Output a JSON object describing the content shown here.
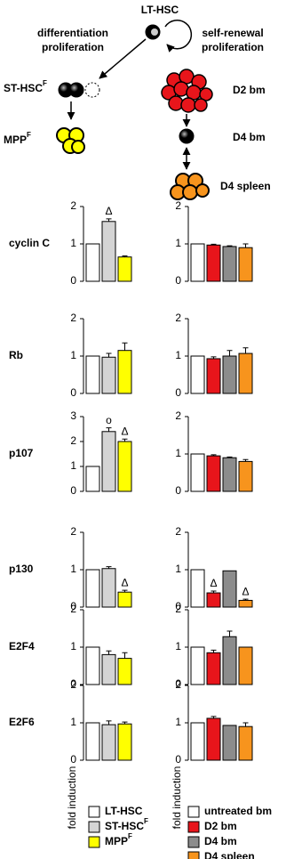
{
  "diagram": {
    "root": "LT-HSC",
    "left_arrow": [
      "differentiation",
      "proliferation"
    ],
    "right_arrow": [
      "self-renewal",
      "proliferation"
    ],
    "st": {
      "name": "ST-HSC",
      "sup": "F"
    },
    "mpp": {
      "name": "MPP",
      "sup": "F"
    },
    "d2": "D2 bm",
    "d4": "D4 bm",
    "spleen": "D4 spleen"
  },
  "chart_data": [
    {
      "type": "bar",
      "label": "cyclin C",
      "ylim": [
        0,
        2
      ],
      "yticks": [
        0,
        1,
        2
      ],
      "values": [
        1,
        1.6,
        0.65
      ],
      "errors": [
        null,
        0.07,
        0.03
      ],
      "annotations": [
        null,
        "Δ",
        null
      ],
      "colors": [
        "#ffffff",
        "#d4d4d4",
        "#ffff00"
      ]
    },
    {
      "type": "bar",
      "ylim": [
        0,
        2
      ],
      "yticks": [
        0,
        1,
        2
      ],
      "values": [
        1,
        0.97,
        0.93,
        0.9
      ],
      "errors": [
        null,
        0.02,
        0.02,
        0.1
      ],
      "annotations": [
        null,
        null,
        null,
        null
      ],
      "colors": [
        "#ffffff",
        "#e8151b",
        "#8c8c8c",
        "#f7941d"
      ]
    },
    {
      "type": "bar",
      "label": "Rb",
      "ylim": [
        0,
        2
      ],
      "yticks": [
        0,
        1,
        2
      ],
      "values": [
        1,
        0.97,
        1.15
      ],
      "errors": [
        null,
        0.1,
        0.2
      ],
      "annotations": [
        null,
        null,
        null
      ],
      "colors": [
        "#ffffff",
        "#d4d4d4",
        "#ffff00"
      ]
    },
    {
      "type": "bar",
      "ylim": [
        0,
        2
      ],
      "yticks": [
        0,
        1,
        2
      ],
      "values": [
        1,
        0.93,
        1.0,
        1.07
      ],
      "errors": [
        null,
        0.05,
        0.15,
        0.15
      ],
      "annotations": [
        null,
        null,
        null,
        null
      ],
      "colors": [
        "#ffffff",
        "#e8151b",
        "#8c8c8c",
        "#f7941d"
      ]
    },
    {
      "type": "bar",
      "label": "p107",
      "ylim": [
        0,
        3
      ],
      "yticks": [
        0,
        1,
        2,
        3
      ],
      "values": [
        1,
        2.4,
        2.0
      ],
      "errors": [
        null,
        0.15,
        0.1
      ],
      "annotations": [
        null,
        "o",
        "Δ"
      ],
      "colors": [
        "#ffffff",
        "#d4d4d4",
        "#ffff00"
      ]
    },
    {
      "type": "bar",
      "ylim": [
        0,
        2
      ],
      "yticks": [
        0,
        1,
        2
      ],
      "values": [
        1,
        0.95,
        0.9,
        0.8
      ],
      "errors": [
        null,
        0.03,
        0.02,
        0.05
      ],
      "annotations": [
        null,
        null,
        null,
        null
      ],
      "colors": [
        "#ffffff",
        "#e8151b",
        "#8c8c8c",
        "#f7941d"
      ]
    },
    {
      "type": "bar",
      "label": "p130",
      "ylim": [
        0,
        2
      ],
      "yticks": [
        0,
        1,
        2
      ],
      "values": [
        1,
        1.03,
        0.4
      ],
      "errors": [
        null,
        0.05,
        0.05
      ],
      "annotations": [
        null,
        null,
        "Δ"
      ],
      "colors": [
        "#ffffff",
        "#d4d4d4",
        "#ffff00"
      ]
    },
    {
      "type": "bar",
      "ylim": [
        0,
        2
      ],
      "yticks": [
        0,
        1,
        2
      ],
      "values": [
        1,
        0.38,
        0.97,
        0.18
      ],
      "errors": [
        null,
        0.05,
        null,
        0.03
      ],
      "annotations": [
        null,
        "Δ",
        null,
        "Δ"
      ],
      "colors": [
        "#ffffff",
        "#e8151b",
        "#8c8c8c",
        "#f7941d"
      ]
    },
    {
      "type": "bar",
      "label": "E2F4",
      "ylim": [
        0,
        2
      ],
      "yticks": [
        0,
        1,
        2
      ],
      "values": [
        1,
        0.8,
        0.7
      ],
      "errors": [
        null,
        0.1,
        0.15
      ],
      "annotations": [
        null,
        null,
        null
      ],
      "colors": [
        "#ffffff",
        "#d4d4d4",
        "#ffff00"
      ]
    },
    {
      "type": "bar",
      "ylim": [
        0,
        2
      ],
      "yticks": [
        0,
        1,
        2
      ],
      "values": [
        1,
        0.85,
        1.28,
        1.0
      ],
      "errors": [
        null,
        0.07,
        0.15,
        null
      ],
      "annotations": [
        null,
        null,
        null,
        null
      ],
      "colors": [
        "#ffffff",
        "#e8151b",
        "#8c8c8c",
        "#f7941d"
      ]
    },
    {
      "type": "bar",
      "label": "E2F6",
      "ylabel": "fold induction",
      "ylim": [
        0,
        2
      ],
      "yticks": [
        0,
        1,
        2
      ],
      "values": [
        1,
        0.95,
        0.97
      ],
      "errors": [
        null,
        0.1,
        0.05
      ],
      "annotations": [
        null,
        null,
        null
      ],
      "colors": [
        "#ffffff",
        "#d4d4d4",
        "#ffff00"
      ]
    },
    {
      "type": "bar",
      "ylabel": "fold induction",
      "ylim": [
        0,
        2
      ],
      "yticks": [
        0,
        1,
        2
      ],
      "values": [
        1,
        1.12,
        0.93,
        0.9
      ],
      "errors": [
        null,
        0.05,
        null,
        0.1
      ],
      "annotations": [
        null,
        null,
        null,
        null
      ],
      "colors": [
        "#ffffff",
        "#e8151b",
        "#8c8c8c",
        "#f7941d"
      ]
    }
  ],
  "legends": [
    [
      {
        "name": "LT-HSC",
        "color": "#ffffff"
      },
      {
        "name": "ST-HSC",
        "sup": "F",
        "color": "#d4d4d4"
      },
      {
        "name": "MPP",
        "sup": "F",
        "color": "#ffff00"
      }
    ],
    [
      {
        "name": "untreated bm",
        "color": "#ffffff"
      },
      {
        "name": "D2 bm",
        "color": "#e8151b"
      },
      {
        "name": "D4 bm",
        "color": "#8c8c8c"
      },
      {
        "name": "D4 spleen",
        "color": "#f7941d"
      }
    ]
  ]
}
